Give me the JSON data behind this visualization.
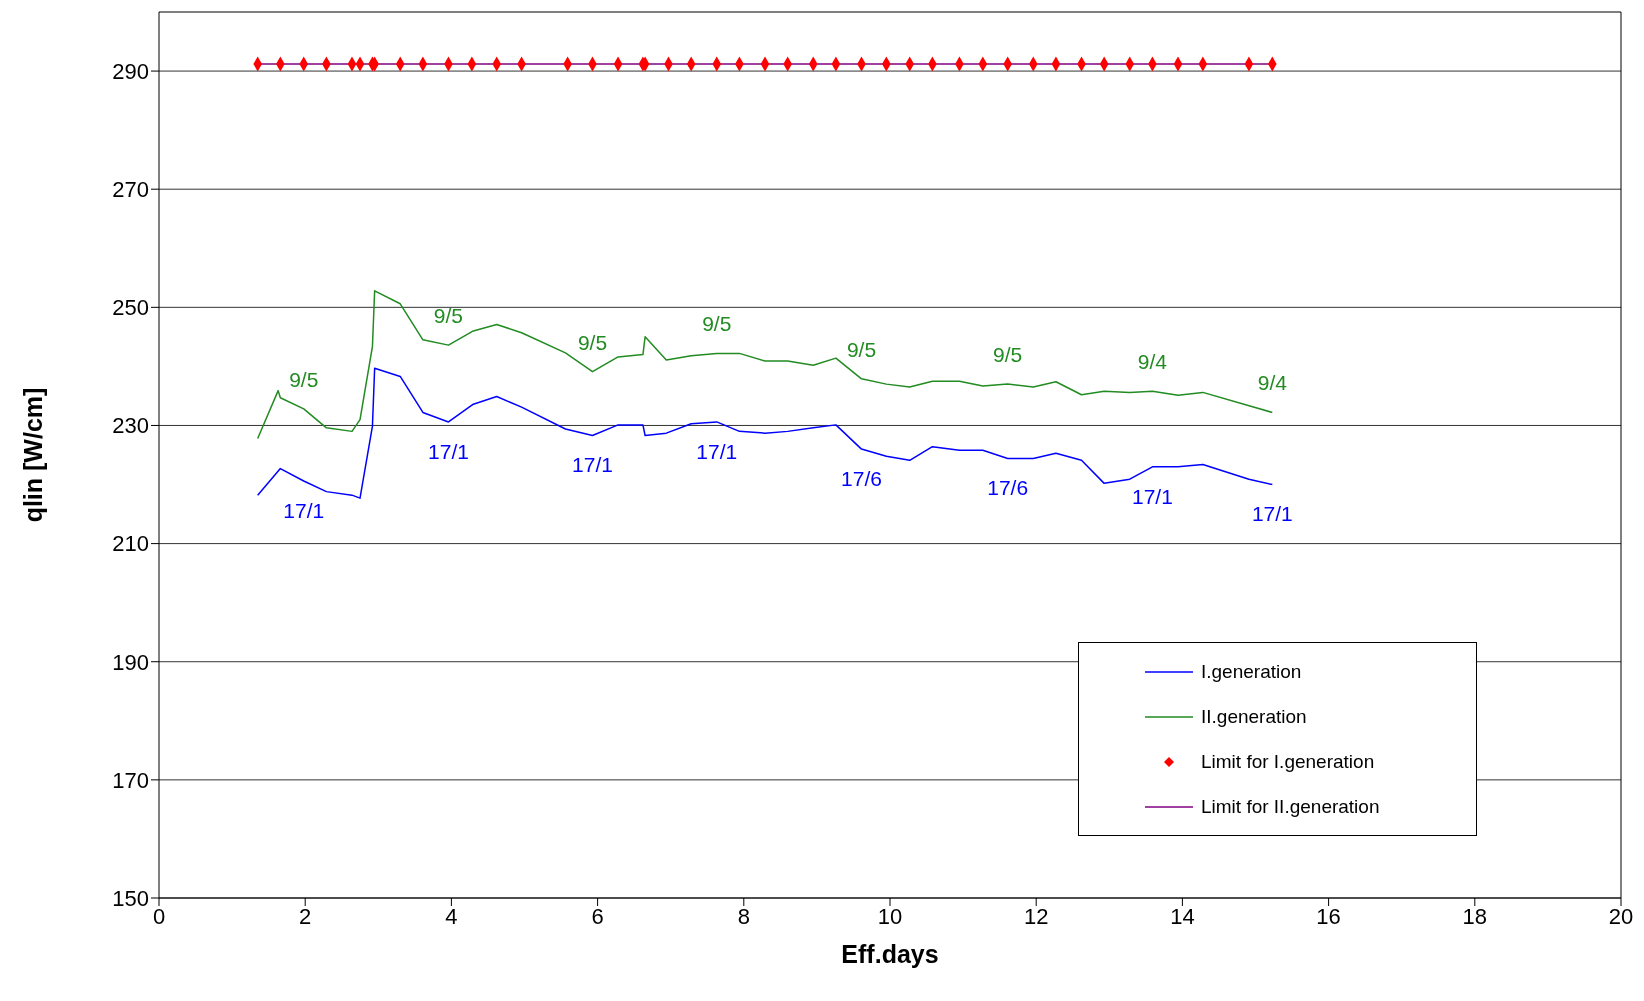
{
  "chart_data": {
    "type": "line",
    "xlabel": "Eff.days",
    "ylabel": "qlin [W/cm]",
    "xlim": [
      0,
      20
    ],
    "xticks": [
      0,
      2,
      4,
      6,
      8,
      10,
      12,
      14,
      16,
      18,
      20
    ],
    "ylim": [
      150,
      300
    ],
    "yticks": [
      150,
      170,
      190,
      210,
      230,
      250,
      270,
      290
    ],
    "grid": "y",
    "legend": "bottom right",
    "marker": "none",
    "series": [
      {
        "name": "I.generation",
        "color": "#0000ff",
        "x": [
          1.35,
          1.66,
          1.98,
          2.29,
          2.64,
          2.75,
          2.92,
          2.95,
          3.3,
          3.61,
          3.96,
          4.3,
          4.62,
          4.96,
          5.56,
          5.93,
          6.28,
          6.62,
          6.65,
          6.94,
          7.28,
          7.63,
          7.94,
          8.29,
          8.6,
          8.95,
          9.26,
          9.61,
          9.95,
          10.27,
          10.58,
          10.95,
          11.27,
          11.61,
          11.96,
          12.27,
          12.62,
          12.93,
          13.28,
          13.59,
          13.94,
          14.28,
          14.91,
          15.23
        ],
        "values": [
          218.2,
          222.7,
          220.6,
          218.8,
          218.2,
          217.7,
          229.9,
          239.7,
          238.3,
          232.2,
          230.6,
          233.6,
          234.9,
          233.1,
          229.4,
          228.3,
          230.1,
          230.1,
          228.3,
          228.7,
          230.3,
          230.6,
          229.0,
          228.7,
          229.0,
          229.6,
          230.1,
          226.0,
          224.8,
          224.1,
          226.4,
          225.8,
          225.8,
          224.4,
          224.4,
          225.3,
          224.1,
          220.2,
          220.9,
          223.0,
          223.0,
          223.4,
          220.9,
          220.0
        ]
      },
      {
        "name": "II.generation",
        "color": "#228b22",
        "x": [
          1.35,
          1.63,
          1.66,
          1.98,
          2.29,
          2.64,
          2.75,
          2.92,
          2.95,
          3.3,
          3.61,
          3.96,
          4.3,
          4.62,
          4.96,
          5.56,
          5.93,
          6.28,
          6.62,
          6.65,
          6.94,
          7.28,
          7.63,
          7.94,
          8.29,
          8.6,
          8.95,
          9.26,
          9.61,
          9.95,
          10.27,
          10.58,
          10.95,
          11.27,
          11.61,
          11.96,
          12.27,
          12.62,
          12.93,
          13.28,
          13.59,
          13.94,
          14.28,
          15.23
        ],
        "values": [
          227.8,
          235.9,
          234.7,
          232.8,
          229.6,
          229.0,
          231.0,
          243.4,
          252.8,
          250.6,
          244.5,
          243.6,
          246.0,
          247.1,
          245.7,
          242.3,
          239.1,
          241.6,
          242.0,
          245.0,
          241.1,
          241.8,
          242.2,
          242.2,
          240.9,
          240.9,
          240.2,
          241.4,
          237.9,
          237.0,
          236.5,
          237.5,
          237.5,
          236.7,
          237.0,
          236.5,
          237.4,
          235.2,
          235.8,
          235.6,
          235.8,
          235.1,
          235.6,
          232.2
        ]
      },
      {
        "name": "Limit for I.generation",
        "type": "scatter",
        "marker": "diamond",
        "color": "#ff0000",
        "x": [
          1.35,
          1.66,
          1.98,
          2.29,
          2.64,
          2.75,
          2.92,
          2.95,
          3.3,
          3.61,
          3.96,
          4.28,
          4.62,
          4.96,
          5.59,
          5.93,
          6.28,
          6.62,
          6.65,
          6.97,
          7.28,
          7.63,
          7.94,
          8.29,
          8.6,
          8.95,
          9.26,
          9.61,
          9.95,
          10.27,
          10.58,
          10.95,
          11.27,
          11.61,
          11.96,
          12.27,
          12.62,
          12.93,
          13.28,
          13.59,
          13.94,
          14.28,
          14.91,
          15.23
        ],
        "values": [
          291.2,
          291.2,
          291.2,
          291.2,
          291.2,
          291.2,
          291.2,
          291.2,
          291.2,
          291.2,
          291.2,
          291.2,
          291.2,
          291.2,
          291.2,
          291.2,
          291.2,
          291.2,
          291.2,
          291.2,
          291.2,
          291.2,
          291.2,
          291.2,
          291.2,
          291.2,
          291.2,
          291.2,
          291.2,
          291.2,
          291.2,
          291.2,
          291.2,
          291.2,
          291.2,
          291.2,
          291.2,
          291.2,
          291.2,
          291.2,
          291.2,
          291.2,
          291.2,
          291.2
        ]
      },
      {
        "name": "Limit for II.generation",
        "color": "#800080",
        "x": [
          1.35,
          15.23
        ],
        "values": [
          291.2,
          291.2
        ]
      }
    ],
    "annotations": [
      {
        "text": "9/5",
        "x": 1.98,
        "y": 232.8
      },
      {
        "text": "9/5",
        "x": 3.96,
        "y": 243.6
      },
      {
        "text": "9/5",
        "x": 5.93,
        "y": 239.1
      },
      {
        "text": "9/5",
        "x": 7.63,
        "y": 242.2
      },
      {
        "text": "9/5",
        "x": 9.61,
        "y": 237.9
      },
      {
        "text": "9/5",
        "x": 11.61,
        "y": 237.0
      },
      {
        "text": "9/4",
        "x": 13.59,
        "y": 235.8
      },
      {
        "text": "9/4",
        "x": 15.23,
        "y": 232.2
      },
      {
        "text": "17/1",
        "x": 1.98,
        "y": 220.6
      },
      {
        "text": "17/1",
        "x": 3.96,
        "y": 230.6
      },
      {
        "text": "17/1",
        "x": 5.93,
        "y": 228.3
      },
      {
        "text": "17/1",
        "x": 7.63,
        "y": 230.6
      },
      {
        "text": "17/6",
        "x": 9.61,
        "y": 226.0
      },
      {
        "text": "17/6",
        "x": 11.61,
        "y": 224.4
      },
      {
        "text": "17/1",
        "x": 13.59,
        "y": 223.0
      },
      {
        "text": "17/1",
        "x": 15.23,
        "y": 220.0
      }
    ]
  }
}
